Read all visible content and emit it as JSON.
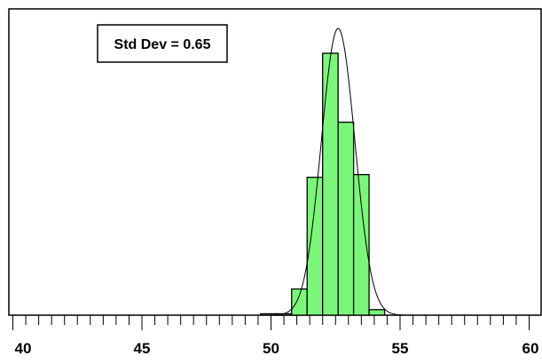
{
  "chart_data": {
    "type": "bar",
    "subtype": "histogram-with-normal-curve",
    "annotation": "Std Dev = 0.65",
    "xlim": [
      40,
      60
    ],
    "ylim": [
      0,
      100
    ],
    "x_major_ticks": [
      40,
      45,
      50,
      55,
      60
    ],
    "x_minor_tick_step": 0.5,
    "tick_labels": [
      "40",
      "45",
      "50",
      "55",
      "60"
    ],
    "bin_width": 0.6,
    "bins": [
      {
        "start": 49.6,
        "end": 50.2,
        "value": 0.5
      },
      {
        "start": 50.2,
        "end": 50.8,
        "value": 0.5
      },
      {
        "start": 50.8,
        "end": 51.4,
        "value": 9.5
      },
      {
        "start": 51.4,
        "end": 52.0,
        "value": 50.0
      },
      {
        "start": 52.0,
        "end": 52.6,
        "value": 95.0
      },
      {
        "start": 52.6,
        "end": 53.2,
        "value": 70.0
      },
      {
        "start": 53.2,
        "end": 53.8,
        "value": 51.0
      },
      {
        "start": 53.8,
        "end": 54.4,
        "value": 2.0
      }
    ],
    "normal_curve": {
      "mean": 52.6,
      "std": 0.65,
      "peak": 104
    },
    "grid": false,
    "legend": "none",
    "colors": {
      "bar_fill": "#7cf67a",
      "bar_stroke": "#000000",
      "curve": "#000000"
    }
  }
}
